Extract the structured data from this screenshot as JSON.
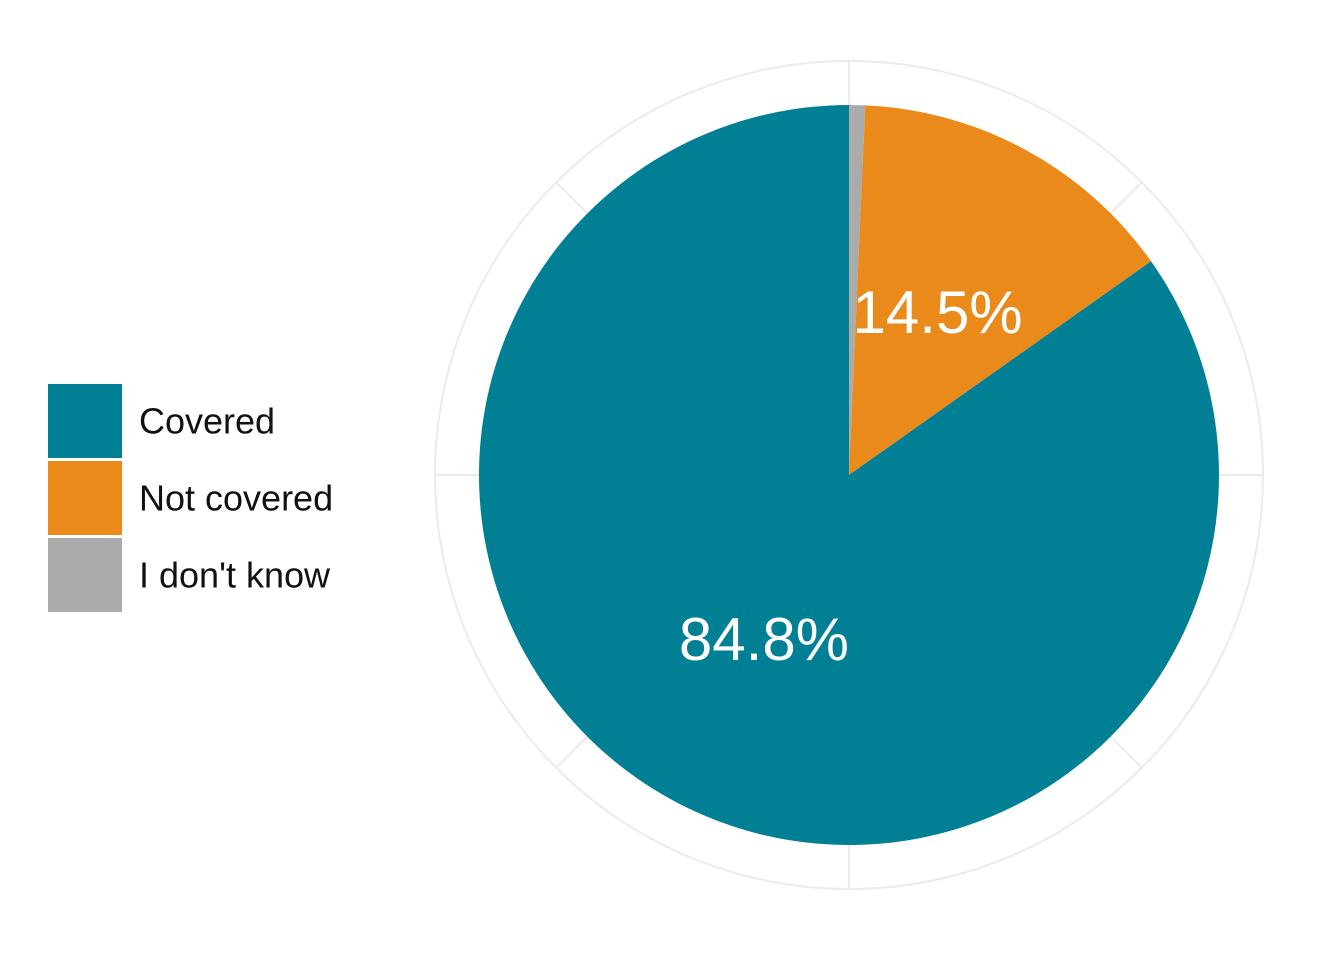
{
  "chart_data": {
    "type": "pie",
    "title": "",
    "start_angle_deg": 0,
    "direction": "clockwise",
    "colors": {
      "Covered": "#007F95",
      "Not covered": "#EA8A1A",
      "I don't know": "#ABABAB"
    },
    "legend": {
      "placement": "left",
      "entries": [
        "Covered",
        "Not covered",
        "I don't know"
      ]
    },
    "slices": [
      {
        "label": "I don't know",
        "value": 0.7,
        "display": ""
      },
      {
        "label": "Not covered",
        "value": 14.5,
        "display": "14.5%"
      },
      {
        "label": "Covered",
        "value": 84.8,
        "display": "84.8%"
      }
    ],
    "grid": true
  }
}
